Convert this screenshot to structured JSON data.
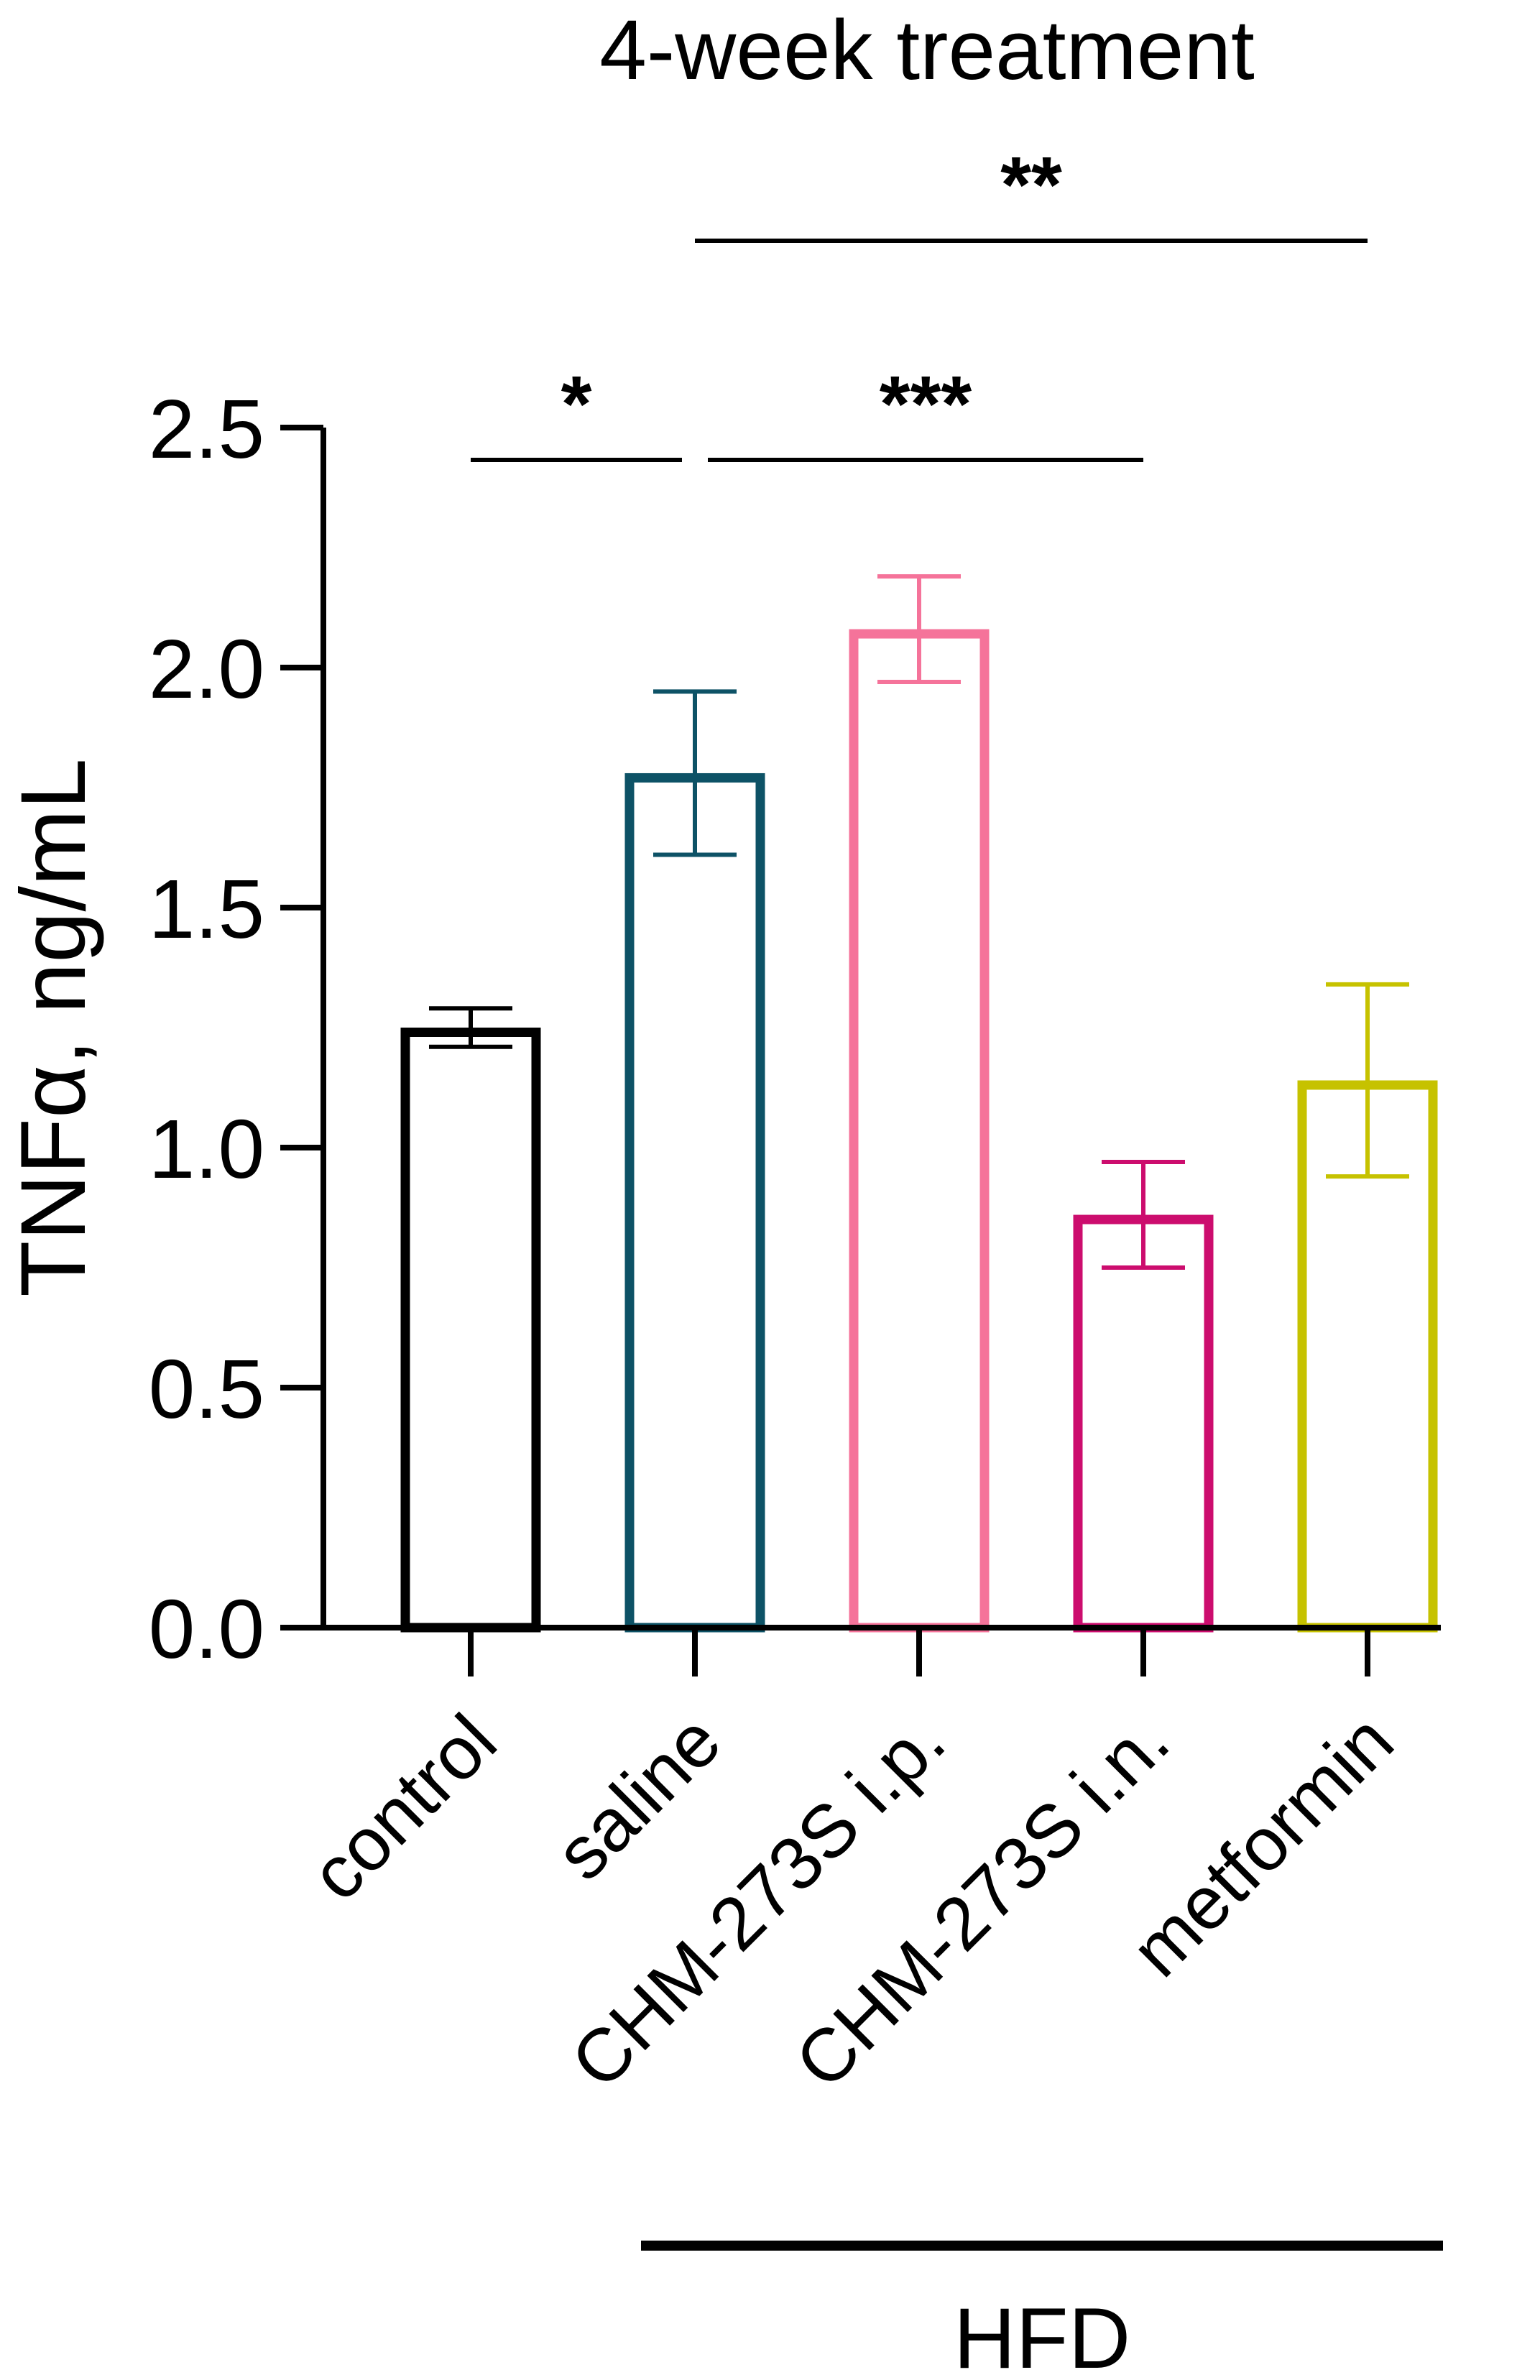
{
  "chart_data": {
    "type": "bar",
    "title": "4-week treatment",
    "ylabel": "TNFα, ng/mL",
    "xlabel": "",
    "ylim": [
      0,
      2.5
    ],
    "yticks": [
      0,
      0.5,
      1,
      1.5,
      2,
      2.5
    ],
    "ytick_labels": [
      "0.0",
      "0.5",
      "1.0",
      "1.5",
      "2.0",
      "2.5"
    ],
    "categories": [
      "control",
      "saline",
      "CHM-273S i.p.",
      "CHM-273S i.n.",
      "metformin"
    ],
    "values": [
      1.25,
      1.78,
      2.08,
      0.86,
      1.14
    ],
    "errors": [
      0.04,
      0.17,
      0.11,
      0.11,
      0.2
    ],
    "colors": [
      "#000000",
      "#0d5266",
      "#f5739a",
      "#cc0d6e",
      "#c6c200"
    ],
    "group_label": "HFD",
    "group_span": [
      "saline",
      "metformin"
    ],
    "significance": [
      {
        "from": "control",
        "to": "saline",
        "label": "*"
      },
      {
        "from": "saline",
        "to": "CHM-273S i.n.",
        "label": "***"
      },
      {
        "from": "saline",
        "to": "metformin",
        "label": "**"
      }
    ],
    "grid": false
  }
}
